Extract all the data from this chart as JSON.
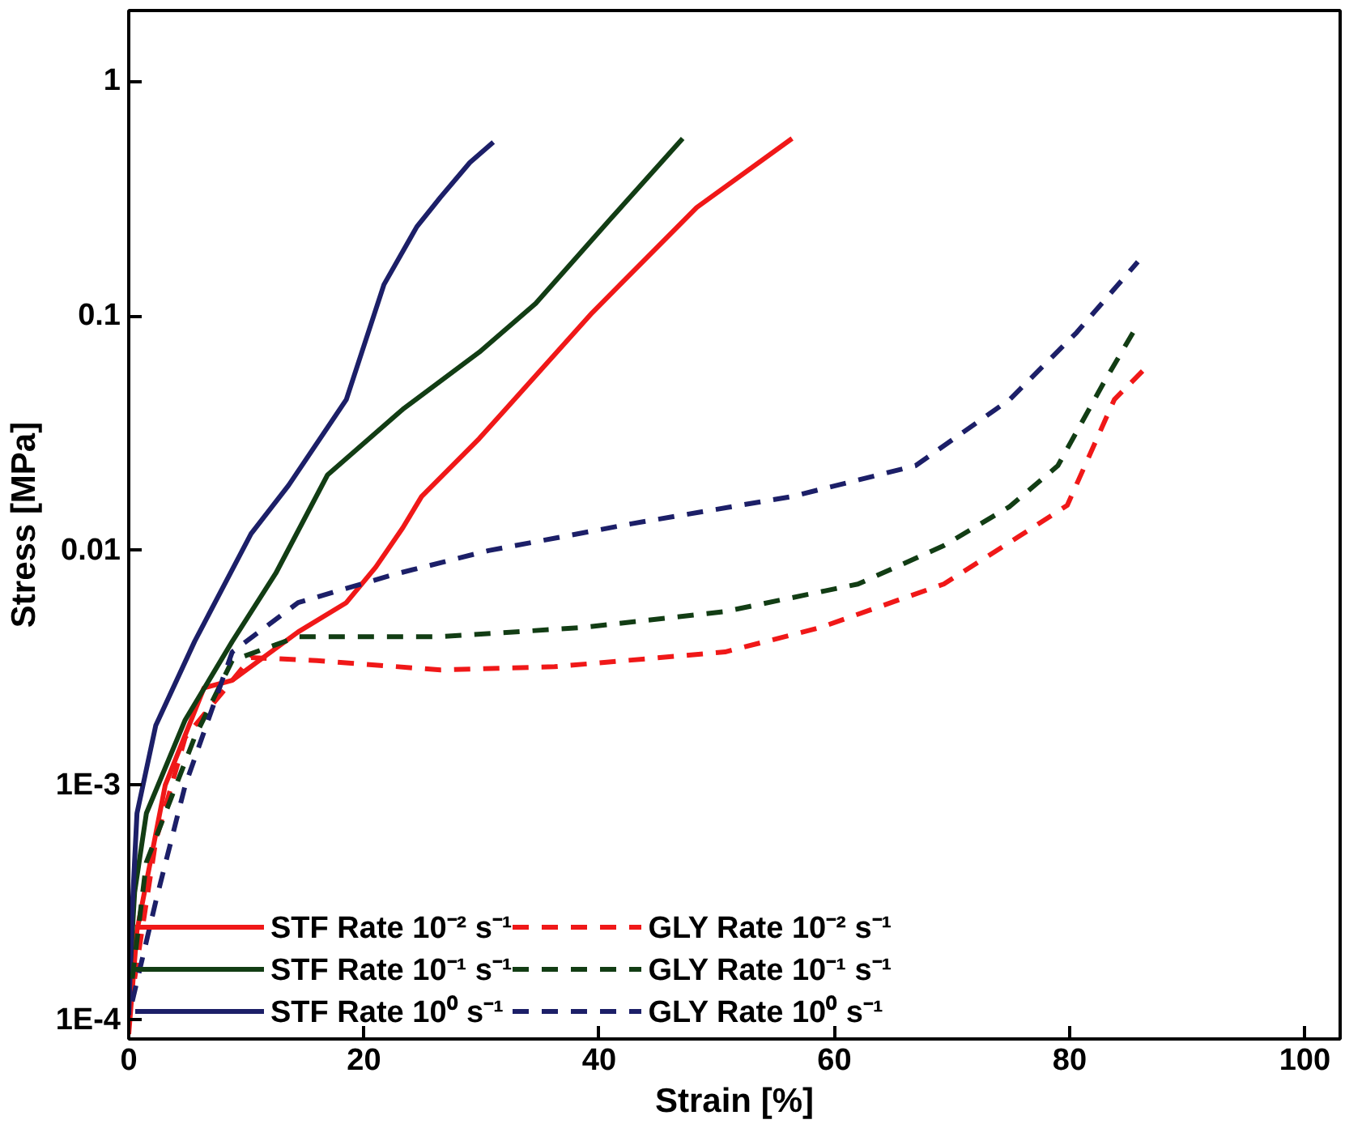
{
  "chart_data": {
    "type": "line",
    "xlabel": "Strain [%]",
    "ylabel": "Stress [MPa]",
    "log": "y",
    "xlim": [
      0,
      103
    ],
    "xticks": [
      0,
      20,
      40,
      60,
      80,
      100
    ],
    "ylim": [
      8.3e-05,
      2
    ],
    "yticks": [
      {
        "value": 0.0001,
        "label": "1E-4"
      },
      {
        "value": 0.001,
        "label": "1E-3"
      },
      0.01,
      0.1,
      1
    ],
    "grid": false,
    "legend": "bottom left",
    "series": [
      {
        "name": "STF Rate 10⁻² s⁻¹",
        "color": "#f01818",
        "line_style": "solid",
        "x": [
          0,
          0.7,
          3.1,
          6.4,
          8.8,
          14.4,
          18.5,
          21,
          23.3,
          24.9,
          29.8,
          39.4,
          48.3,
          56.4
        ],
        "values": [
          8.7e-05,
          0.00024,
          0.001,
          0.0026,
          0.0028,
          0.0045,
          0.006,
          0.0085,
          0.0125,
          0.017,
          0.03,
          0.103,
          0.29,
          0.57
        ]
      },
      {
        "name": "STF Rate 10⁻¹ s⁻¹",
        "color": "#123d14",
        "line_style": "solid",
        "x": [
          0,
          0.5,
          1.5,
          4.8,
          8.8,
          12.5,
          16.9,
          23.3,
          29.8,
          34.6,
          41,
          47.1
        ],
        "values": [
          0.00013,
          0.00035,
          0.00076,
          0.0019,
          0.0041,
          0.008,
          0.021,
          0.04,
          0.07,
          0.113,
          0.26,
          0.57
        ]
      },
      {
        "name": "STF Rate 10⁰ s⁻¹",
        "color": "#1c1f68",
        "line_style": "solid",
        "x": [
          0,
          0.3,
          0.7,
          2.3,
          5.6,
          10.4,
          13.6,
          18.5,
          21.7,
          24.5,
          26.5,
          29,
          31
        ],
        "values": [
          0.000105,
          0.0003,
          0.00076,
          0.0018,
          0.0041,
          0.0118,
          0.019,
          0.044,
          0.136,
          0.24,
          0.32,
          0.45,
          0.55
        ]
      },
      {
        "name": "GLY Rate 10⁻² s⁻¹",
        "color": "#f01818",
        "line_style": "dashed",
        "x": [
          0.5,
          2.3,
          4.8,
          10.4,
          16,
          26.5,
          36.2,
          50.7,
          58.8,
          69.3,
          75.7,
          79.8,
          83.8,
          86.6
        ],
        "values": [
          0.00015,
          0.00058,
          0.0016,
          0.0035,
          0.0034,
          0.0031,
          0.0032,
          0.0037,
          0.0047,
          0.0072,
          0.0115,
          0.0156,
          0.044,
          0.061
        ]
      },
      {
        "name": "GLY Rate 10⁻¹ s⁻¹",
        "color": "#123d14",
        "line_style": "dashed",
        "x": [
          0.3,
          1.5,
          5.6,
          8.8,
          14.4,
          26.5,
          38.6,
          50.7,
          62,
          69.3,
          74.9,
          79,
          83,
          85.4
        ],
        "values": [
          0.00015,
          0.00047,
          0.0016,
          0.0034,
          0.0043,
          0.0043,
          0.0047,
          0.0055,
          0.0072,
          0.0105,
          0.0154,
          0.023,
          0.053,
          0.085
        ]
      },
      {
        "name": "GLY Rate 10⁰ s⁻¹",
        "color": "#1c1f68",
        "line_style": "dashed",
        "x": [
          0.3,
          2.3,
          4.8,
          8.8,
          14.4,
          22.5,
          30.6,
          42.7,
          56.4,
          66.9,
          74.9,
          80.6,
          85.8
        ],
        "values": [
          0.00012,
          0.00032,
          0.001,
          0.0037,
          0.006,
          0.0079,
          0.01,
          0.013,
          0.017,
          0.023,
          0.044,
          0.085,
          0.17
        ]
      }
    ]
  }
}
